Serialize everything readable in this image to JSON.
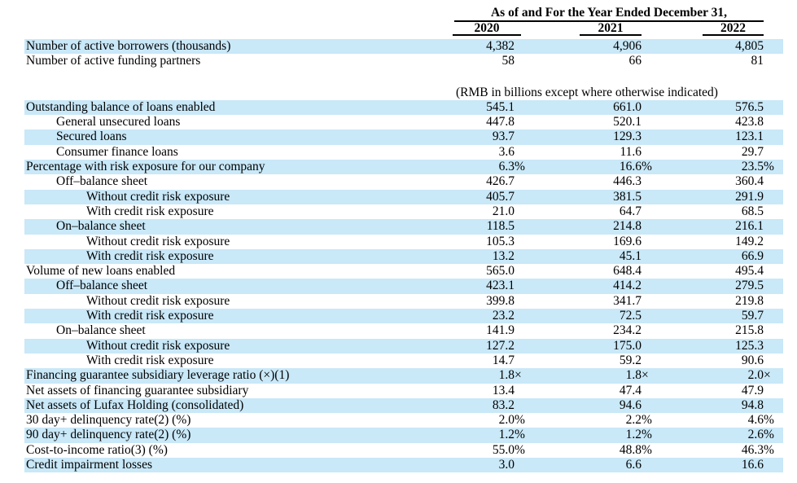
{
  "header": {
    "title": "As of and For the Year Ended December 31,",
    "years": [
      "2020",
      "2021",
      "2022"
    ]
  },
  "unit_note": "(RMB in billions except where otherwise indicated)",
  "colors": {
    "highlight": "#c9e8f8",
    "text": "#000000"
  },
  "rows": [
    {
      "label": "Number of active borrowers (thousands)",
      "indent": 0,
      "highlight": true,
      "values": [
        "4,382",
        "4,906",
        "4,805"
      ]
    },
    {
      "label": "Number of active funding partners",
      "indent": 0,
      "highlight": false,
      "values": [
        "58",
        "66",
        "81"
      ]
    },
    {
      "type": "blank"
    },
    {
      "type": "note"
    },
    {
      "label": "Outstanding balance of loans enabled",
      "indent": 0,
      "highlight": true,
      "values": [
        "545.1",
        "661.0",
        "576.5"
      ]
    },
    {
      "label": "General unsecured loans",
      "indent": 1,
      "highlight": false,
      "values": [
        "447.8",
        "520.1",
        "423.8"
      ]
    },
    {
      "label": "Secured loans",
      "indent": 1,
      "highlight": true,
      "values": [
        "93.7",
        "129.3",
        "123.1"
      ]
    },
    {
      "label": "Consumer finance loans",
      "indent": 1,
      "highlight": false,
      "values": [
        "3.6",
        "11.6",
        "29.7"
      ]
    },
    {
      "label": "Percentage with risk exposure for our company",
      "indent": 0,
      "highlight": true,
      "values": [
        "6.3%",
        "16.6%",
        "23.5%"
      ]
    },
    {
      "label": "Off–balance sheet",
      "indent": 1,
      "highlight": false,
      "values": [
        "426.7",
        "446.3",
        "360.4"
      ]
    },
    {
      "label": "Without credit risk exposure",
      "indent": 2,
      "highlight": true,
      "values": [
        "405.7",
        "381.5",
        "291.9"
      ]
    },
    {
      "label": "With credit risk exposure",
      "indent": 2,
      "highlight": false,
      "values": [
        "21.0",
        "64.7",
        "68.5"
      ]
    },
    {
      "label": "On–balance sheet",
      "indent": 1,
      "highlight": true,
      "values": [
        "118.5",
        "214.8",
        "216.1"
      ]
    },
    {
      "label": "Without credit risk exposure",
      "indent": 2,
      "highlight": false,
      "values": [
        "105.3",
        "169.6",
        "149.2"
      ]
    },
    {
      "label": "With credit risk exposure",
      "indent": 2,
      "highlight": true,
      "values": [
        "13.2",
        "45.1",
        "66.9"
      ]
    },
    {
      "label": "Volume of new loans enabled",
      "indent": 0,
      "highlight": false,
      "values": [
        "565.0",
        "648.4",
        "495.4"
      ]
    },
    {
      "label": "Off–balance sheet",
      "indent": 1,
      "highlight": true,
      "values": [
        "423.1",
        "414.2",
        "279.5"
      ]
    },
    {
      "label": "Without credit risk exposure",
      "indent": 2,
      "highlight": false,
      "values": [
        "399.8",
        "341.7",
        "219.8"
      ]
    },
    {
      "label": "With credit risk exposure",
      "indent": 2,
      "highlight": true,
      "values": [
        "23.2",
        "72.5",
        "59.7"
      ]
    },
    {
      "label": "On–balance sheet",
      "indent": 1,
      "highlight": false,
      "values": [
        "141.9",
        "234.2",
        "215.8"
      ]
    },
    {
      "label": "Without credit risk exposure",
      "indent": 2,
      "highlight": true,
      "values": [
        "127.2",
        "175.0",
        "125.3"
      ]
    },
    {
      "label": "With credit risk exposure",
      "indent": 2,
      "highlight": false,
      "values": [
        "14.7",
        "59.2",
        "90.6"
      ]
    },
    {
      "label": "Financing guarantee subsidiary leverage ratio (×)(1)",
      "indent": 0,
      "highlight": true,
      "values": [
        "1.8×",
        "1.8×",
        "2.0×"
      ]
    },
    {
      "label": "Net assets of financing guarantee subsidiary",
      "indent": 0,
      "highlight": false,
      "values": [
        "13.4",
        "47.4",
        "47.9"
      ]
    },
    {
      "label": "Net assets of Lufax Holding (consolidated)",
      "indent": 0,
      "highlight": true,
      "values": [
        "83.2",
        "94.6",
        "94.8"
      ]
    },
    {
      "label": "30 day+ delinquency rate(2) (%)",
      "indent": 0,
      "highlight": false,
      "values": [
        "2.0%",
        "2.2%",
        "4.6%"
      ]
    },
    {
      "label": "90 day+ delinquency rate(2) (%)",
      "indent": 0,
      "highlight": true,
      "values": [
        "1.2%",
        "1.2%",
        "2.6%"
      ]
    },
    {
      "label": "Cost-to-income ratio(3) (%)",
      "indent": 0,
      "highlight": false,
      "values": [
        "55.0%",
        "48.8%",
        "46.3%"
      ]
    },
    {
      "label": "Credit impairment losses",
      "indent": 0,
      "highlight": true,
      "values": [
        "3.0",
        "6.6",
        "16.6"
      ]
    }
  ]
}
